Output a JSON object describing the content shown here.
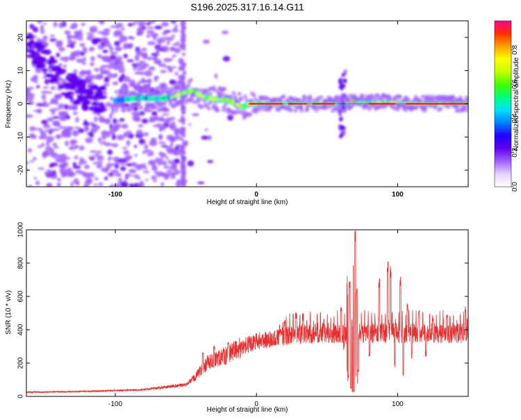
{
  "title": "S196.2025.317.16.14.G11",
  "chart_data": [
    {
      "type": "heatmap",
      "xlabel": "Height of straight line (km)",
      "ylabel": "Frequency (Hz)",
      "xlim": [
        -163,
        150
      ],
      "ylim": [
        -25,
        25
      ],
      "xticks": [
        -100,
        0,
        100
      ],
      "xtick_labels": [
        "-100",
        "0",
        "100"
      ],
      "yticks": [
        -20,
        -10,
        0,
        10,
        20
      ],
      "ytick_labels": [
        "-20",
        "-10",
        "0",
        "10",
        "20"
      ],
      "colorbar": {
        "label": "Normalized spectral amplitude",
        "range": [
          0,
          0.97
        ],
        "ticks": [
          0,
          0.2,
          0.4,
          0.6,
          0.8
        ],
        "tick_labels": [
          "0.0",
          "0.2",
          "0.4",
          "0.6",
          "0.8"
        ],
        "colors": [
          "#ffffff",
          "#e6d2ff",
          "#a060ff",
          "#6000f0",
          "#2000ff",
          "#0080ff",
          "#00e0ff",
          "#00ff80",
          "#40ff00",
          "#c0ff00",
          "#ffff00",
          "#ffa000",
          "#ff3000",
          "#ff0090"
        ]
      },
      "ridge": [
        [
          -163,
          18
        ],
        [
          -155,
          15
        ],
        [
          -145,
          11
        ],
        [
          -135,
          6
        ],
        [
          -125,
          3
        ],
        [
          -110,
          1.5
        ],
        [
          -100,
          1
        ],
        [
          -90,
          1.5
        ],
        [
          -80,
          1.8
        ],
        [
          -70,
          1.5
        ],
        [
          -60,
          2
        ],
        [
          -50,
          3.5
        ],
        [
          -45,
          4
        ],
        [
          -40,
          2.5
        ],
        [
          -32,
          1.5
        ],
        [
          -25,
          1.2
        ],
        [
          -20,
          1
        ],
        [
          -15,
          0
        ],
        [
          -10,
          -1
        ],
        [
          -5,
          0
        ],
        [
          0,
          0
        ],
        [
          30,
          0
        ],
        [
          58,
          0
        ],
        [
          62,
          -1
        ],
        [
          66,
          1
        ],
        [
          70,
          0.5
        ],
        [
          80,
          0.5
        ],
        [
          100,
          0.5
        ],
        [
          110,
          0
        ],
        [
          150,
          0
        ]
      ],
      "notes": "Scattered purple noise for heights below about -55 km; strong narrow tone near 0 Hz from 0 to 150 km; disturbance near 60 km."
    },
    {
      "type": "line",
      "xlabel": "Height of straight line (km)",
      "ylabel": "SNR (10 * v/v)",
      "xlim": [
        -163,
        150
      ],
      "ylim": [
        0,
        1000
      ],
      "xticks": [
        -100,
        0,
        100
      ],
      "xtick_labels": [
        "-100",
        "0",
        "100"
      ],
      "yticks": [
        0,
        200,
        400,
        600,
        800,
        1000
      ],
      "ytick_labels": [
        "0",
        "200",
        "400",
        "600",
        "800",
        "1000"
      ],
      "series": [
        {
          "name": "SNR",
          "color": "#e83030",
          "envelope": [
            [
              -163,
              25
            ],
            [
              -120,
              30
            ],
            [
              -80,
              40
            ],
            [
              -60,
              60
            ],
            [
              -50,
              70
            ],
            [
              -42,
              130
            ],
            [
              -35,
              200
            ],
            [
              -20,
              250
            ],
            [
              -10,
              300
            ],
            [
              0,
              330
            ],
            [
              20,
              360
            ],
            [
              40,
              380
            ],
            [
              55,
              380
            ],
            [
              65,
              370
            ],
            [
              75,
              380
            ],
            [
              100,
              380
            ],
            [
              120,
              380
            ],
            [
              150,
              380
            ]
          ],
          "spikes": [
            [
              -38,
              280
            ],
            [
              -30,
              310
            ],
            [
              -20,
              340
            ],
            [
              20,
              460
            ],
            [
              28,
              510
            ],
            [
              33,
              500
            ],
            [
              60,
              540
            ],
            [
              66,
              700
            ],
            [
              69,
              790
            ],
            [
              70,
              1000
            ],
            [
              71,
              650
            ],
            [
              87,
              720
            ],
            [
              93,
              810
            ],
            [
              95,
              790
            ],
            [
              102,
              720
            ],
            [
              107,
              560
            ],
            [
              115,
              530
            ],
            [
              125,
              490
            ],
            [
              135,
              500
            ],
            [
              148,
              560
            ]
          ],
          "dips": [
            [
              62,
              300
            ],
            [
              65,
              120
            ],
            [
              67,
              50
            ],
            [
              68,
              30
            ],
            [
              69,
              30
            ],
            [
              72,
              150
            ],
            [
              80,
              260
            ],
            [
              98,
              190
            ],
            [
              104,
              130
            ],
            [
              110,
              250
            ],
            [
              120,
              250
            ]
          ]
        }
      ]
    }
  ]
}
